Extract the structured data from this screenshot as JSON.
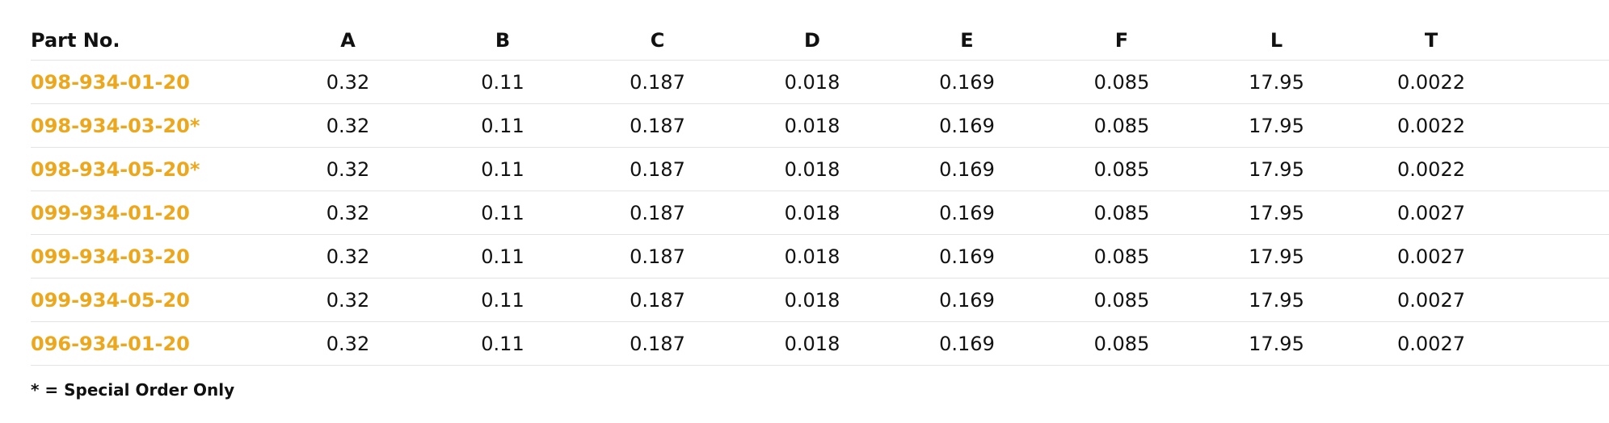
{
  "table": {
    "headers": [
      "Part No.",
      "A",
      "B",
      "C",
      "D",
      "E",
      "F",
      "L",
      "T"
    ],
    "rows": [
      [
        "098-934-01-20",
        "0.32",
        "0.11",
        "0.187",
        "0.018",
        "0.169",
        "0.085",
        "17.95",
        "0.0022"
      ],
      [
        "098-934-03-20*",
        "0.32",
        "0.11",
        "0.187",
        "0.018",
        "0.169",
        "0.085",
        "17.95",
        "0.0022"
      ],
      [
        "098-934-05-20*",
        "0.32",
        "0.11",
        "0.187",
        "0.018",
        "0.169",
        "0.085",
        "17.95",
        "0.0022"
      ],
      [
        "099-934-01-20",
        "0.32",
        "0.11",
        "0.187",
        "0.018",
        "0.169",
        "0.085",
        "17.95",
        "0.0027"
      ],
      [
        "099-934-03-20",
        "0.32",
        "0.11",
        "0.187",
        "0.018",
        "0.169",
        "0.085",
        "17.95",
        "0.0027"
      ],
      [
        "099-934-05-20",
        "0.32",
        "0.11",
        "0.187",
        "0.018",
        "0.169",
        "0.085",
        "17.95",
        "0.0027"
      ],
      [
        "096-934-01-20",
        "0.32",
        "0.11",
        "0.187",
        "0.018",
        "0.169",
        "0.085",
        "17.95",
        "0.0027"
      ]
    ]
  },
  "note": "* = Special Order Only",
  "colors": {
    "part_link": "#eda71d",
    "text": "#111111",
    "divider": "#e3e3e3"
  }
}
